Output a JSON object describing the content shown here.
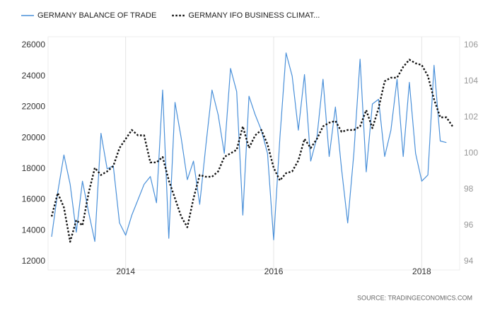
{
  "chart_data": {
    "type": "line",
    "categories": [
      null,
      null,
      null,
      null,
      null,
      null,
      null,
      null,
      null,
      null,
      null,
      null,
      "2014",
      null,
      null,
      null,
      null,
      null,
      null,
      null,
      null,
      null,
      null,
      null,
      null,
      null,
      null,
      null,
      null,
      null,
      null,
      null,
      null,
      null,
      null,
      null,
      "2016",
      null,
      null,
      null,
      null,
      null,
      null,
      null,
      null,
      null,
      null,
      null,
      null,
      null,
      null,
      null,
      null,
      null,
      null,
      null,
      null,
      null,
      null,
      null,
      "2018",
      null,
      null,
      null,
      null,
      null
    ],
    "series": [
      {
        "name": "GERMANY BALANCE OF TRADE",
        "color": "#4a90d9",
        "dash": false,
        "values": [
          13600,
          16500,
          18900,
          17000,
          13900,
          17200,
          15200,
          13300,
          20300,
          18000,
          18200,
          14500,
          13700,
          15000,
          16000,
          17000,
          17500,
          15800,
          23100,
          13500,
          22300,
          20000,
          17300,
          18500,
          15700,
          19500,
          23100,
          21500,
          19000,
          24500,
          23000,
          15000,
          22700,
          21500,
          20500,
          19000,
          13400,
          20000,
          25500,
          24000,
          20500,
          24100,
          18500,
          20000,
          23800,
          18800,
          22000,
          18000,
          14500,
          19000,
          25100,
          17800,
          22200,
          22500,
          18800,
          20500,
          23800,
          18800,
          23600,
          19000,
          17200,
          17600,
          24700,
          19800,
          19700,
          null
        ]
      },
      {
        "name": "GERMANY IFO BUSINESS CLIMAT...",
        "color": "#111111",
        "dash": true,
        "axis": "y2",
        "values": [
          96.5,
          97.8,
          97.0,
          95.1,
          96.3,
          96.0,
          97.8,
          99.2,
          98.8,
          99.0,
          99.3,
          100.3,
          100.8,
          101.3,
          101.0,
          101.0,
          99.5,
          99.5,
          99.8,
          98.5,
          97.5,
          96.5,
          95.9,
          97.5,
          98.8,
          98.7,
          98.7,
          99.0,
          99.8,
          100.0,
          100.2,
          101.5,
          100.3,
          101.0,
          101.3,
          100.5,
          99.2,
          98.5,
          98.9,
          99.0,
          99.6,
          100.8,
          100.3,
          100.8,
          101.5,
          101.7,
          101.8,
          101.2,
          101.3,
          101.3,
          101.5,
          102.4,
          101.4,
          102.5,
          104.0,
          104.2,
          104.2,
          104.8,
          105.2,
          105.0,
          104.9,
          104.3,
          103.0,
          102.0,
          102.0,
          101.5
        ]
      }
    ],
    "ylim": [
      12000,
      26000
    ],
    "yticks": [
      12000,
      14000,
      16000,
      18000,
      20000,
      22000,
      24000,
      26000
    ],
    "y2lim": [
      94,
      106
    ],
    "y2ticks": [
      94,
      96,
      98,
      100,
      102,
      104,
      106
    ],
    "grid": "x",
    "legend": "top-left",
    "source": "SOURCE: TRADINGECONOMICS.COM"
  }
}
